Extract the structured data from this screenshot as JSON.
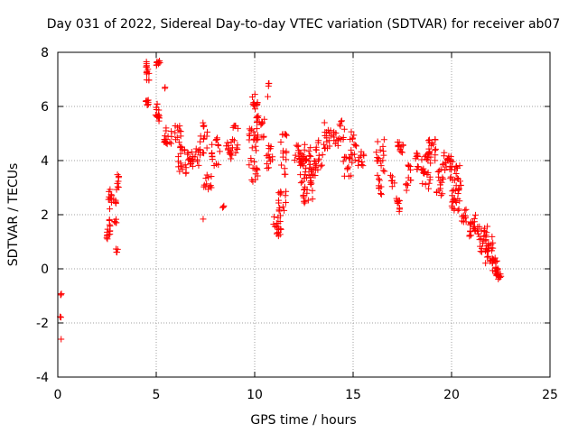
{
  "chart_data": {
    "type": "scatter",
    "title": "Day 031 of 2022, Sidereal Day-to-day VTEC variation (SDTVAR) for receiver ab07",
    "xlabel": "GPS time / hours",
    "ylabel": "SDTVAR / TECUs",
    "xlim": [
      0,
      25
    ],
    "ylim": [
      -4,
      8
    ],
    "xticks": [
      0,
      5,
      10,
      15,
      20,
      25
    ],
    "yticks": [
      -4,
      -2,
      0,
      2,
      4,
      6,
      8
    ],
    "grid": true,
    "marker": "+",
    "color": "#ff0000",
    "clusters": [
      [
        0.15,
        -0.9,
        0.06,
        0.15,
        3
      ],
      [
        0.15,
        -1.8,
        0.05,
        0.1,
        2
      ],
      [
        0.15,
        -2.6,
        0.03,
        0.05,
        1
      ],
      [
        2.55,
        1.5,
        0.12,
        0.4,
        14
      ],
      [
        2.65,
        2.6,
        0.12,
        0.4,
        10
      ],
      [
        2.9,
        2.2,
        0.1,
        0.5,
        10
      ],
      [
        3.05,
        3.2,
        0.07,
        0.3,
        8
      ],
      [
        3.0,
        0.7,
        0.06,
        0.1,
        4
      ],
      [
        4.55,
        7.3,
        0.08,
        0.35,
        14
      ],
      [
        4.55,
        6.1,
        0.08,
        0.15,
        8
      ],
      [
        5.1,
        7.6,
        0.1,
        0.1,
        10
      ],
      [
        5.05,
        5.8,
        0.12,
        0.4,
        14
      ],
      [
        5.4,
        6.7,
        0.05,
        0.05,
        2
      ],
      [
        5.6,
        4.9,
        0.2,
        0.35,
        16
      ],
      [
        6.1,
        5.0,
        0.15,
        0.5,
        12
      ],
      [
        6.3,
        4.0,
        0.25,
        0.5,
        18
      ],
      [
        6.9,
        4.1,
        0.35,
        0.35,
        22
      ],
      [
        7.4,
        4.8,
        0.2,
        0.6,
        16
      ],
      [
        7.6,
        3.2,
        0.2,
        0.4,
        12
      ],
      [
        8.0,
        4.3,
        0.25,
        0.6,
        16
      ],
      [
        7.4,
        1.8,
        0.05,
        0.05,
        1
      ],
      [
        8.45,
        2.3,
        0.1,
        0.05,
        3
      ],
      [
        8.7,
        4.4,
        0.15,
        0.4,
        12
      ],
      [
        9.0,
        4.8,
        0.15,
        0.6,
        12
      ],
      [
        9.9,
        4.5,
        0.2,
        0.7,
        18
      ],
      [
        10.0,
        6.2,
        0.15,
        0.3,
        12
      ],
      [
        10.3,
        5.2,
        0.25,
        0.5,
        20
      ],
      [
        10.0,
        3.5,
        0.15,
        0.3,
        10
      ],
      [
        10.7,
        6.6,
        0.05,
        0.3,
        4
      ],
      [
        10.8,
        4.3,
        0.2,
        0.6,
        14
      ],
      [
        11.15,
        1.6,
        0.2,
        0.4,
        18
      ],
      [
        11.4,
        2.5,
        0.2,
        0.4,
        14
      ],
      [
        11.5,
        4.2,
        0.2,
        0.8,
        16
      ],
      [
        12.3,
        4.1,
        0.3,
        0.5,
        24
      ],
      [
        12.6,
        3.6,
        0.3,
        0.5,
        24
      ],
      [
        13.1,
        4.1,
        0.35,
        0.7,
        30
      ],
      [
        12.7,
        2.7,
        0.25,
        0.4,
        14
      ],
      [
        13.7,
        4.8,
        0.2,
        0.6,
        16
      ],
      [
        14.3,
        5.0,
        0.3,
        0.5,
        18
      ],
      [
        14.7,
        3.8,
        0.2,
        0.4,
        12
      ],
      [
        15.0,
        4.5,
        0.2,
        0.6,
        14
      ],
      [
        15.4,
        4.1,
        0.15,
        0.3,
        10
      ],
      [
        16.4,
        4.1,
        0.25,
        0.8,
        18
      ],
      [
        16.4,
        3.0,
        0.1,
        0.3,
        8
      ],
      [
        17.0,
        3.3,
        0.1,
        0.3,
        6
      ],
      [
        17.4,
        4.5,
        0.15,
        0.2,
        12
      ],
      [
        17.3,
        2.3,
        0.1,
        0.3,
        10
      ],
      [
        17.8,
        3.4,
        0.15,
        0.5,
        12
      ],
      [
        18.2,
        4.0,
        0.15,
        0.4,
        10
      ],
      [
        18.7,
        3.6,
        0.25,
        0.7,
        22
      ],
      [
        19.0,
        4.4,
        0.2,
        0.4,
        18
      ],
      [
        19.4,
        3.2,
        0.2,
        0.5,
        14
      ],
      [
        19.8,
        3.8,
        0.25,
        0.5,
        22
      ],
      [
        20.2,
        3.4,
        0.3,
        0.5,
        22
      ],
      [
        20.2,
        2.5,
        0.25,
        0.4,
        18
      ],
      [
        20.6,
        2.0,
        0.15,
        0.3,
        10
      ],
      [
        21.1,
        1.6,
        0.25,
        0.4,
        22
      ],
      [
        21.6,
        1.1,
        0.25,
        0.5,
        24
      ],
      [
        21.9,
        0.7,
        0.2,
        0.5,
        18
      ],
      [
        22.2,
        0.1,
        0.15,
        0.3,
        20
      ],
      [
        22.4,
        -0.3,
        0.12,
        0.12,
        12
      ]
    ]
  }
}
